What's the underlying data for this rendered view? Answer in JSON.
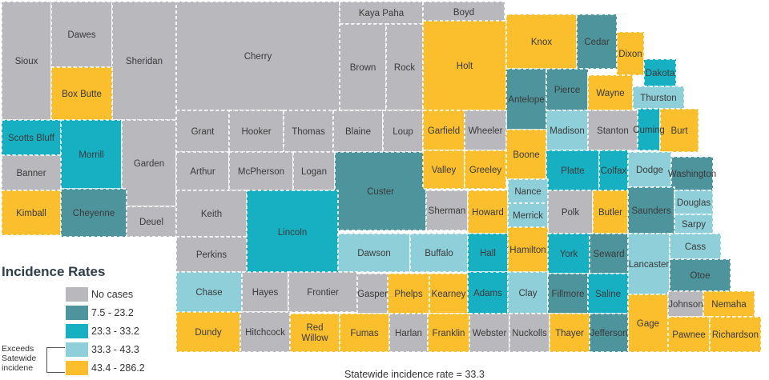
{
  "legend": {
    "title": "Incidence Rates",
    "items": [
      {
        "label": "No cases",
        "color": "#b9b9bd"
      },
      {
        "label": "7.5 - 23.2",
        "color": "#4e949c"
      },
      {
        "label": "23.3 - 33.2",
        "color": "#17b0c3"
      },
      {
        "label": "33.3 - 43.3",
        "color": "#8fcfd9"
      },
      {
        "label": "43.4 - 286.2",
        "color": "#fbbf2d"
      }
    ],
    "exceeds_note": "Exceeds Satewide incidene"
  },
  "footer": "Statewide incidence rate = 33.3",
  "counties": [
    {
      "name": "Sioux",
      "cls": 0
    },
    {
      "name": "Dawes",
      "cls": 0
    },
    {
      "name": "Sheridan",
      "cls": 0
    },
    {
      "name": "Cherry",
      "cls": 0
    },
    {
      "name": "Kaya Paha",
      "cls": 0
    },
    {
      "name": "Boyd",
      "cls": 0
    },
    {
      "name": "Box Butte",
      "cls": 4
    },
    {
      "name": "Brown",
      "cls": 0
    },
    {
      "name": "Rock",
      "cls": 0
    },
    {
      "name": "Holt",
      "cls": 4
    },
    {
      "name": "Knox",
      "cls": 4
    },
    {
      "name": "Cedar",
      "cls": 1
    },
    {
      "name": "Dixon",
      "cls": 4
    },
    {
      "name": "Dakota",
      "cls": 2
    },
    {
      "name": "Antelope",
      "cls": 1
    },
    {
      "name": "Pierce",
      "cls": 1
    },
    {
      "name": "Wayne",
      "cls": 4
    },
    {
      "name": "Thurston",
      "cls": 3
    },
    {
      "name": "Scotts Bluff",
      "cls": 2
    },
    {
      "name": "Morrill",
      "cls": 2
    },
    {
      "name": "Garden",
      "cls": 0
    },
    {
      "name": "Grant",
      "cls": 0
    },
    {
      "name": "Hooker",
      "cls": 0
    },
    {
      "name": "Thomas",
      "cls": 0
    },
    {
      "name": "Blaine",
      "cls": 0
    },
    {
      "name": "Loup",
      "cls": 0
    },
    {
      "name": "Garfield",
      "cls": 4
    },
    {
      "name": "Wheeler",
      "cls": 0
    },
    {
      "name": "Madison",
      "cls": 3
    },
    {
      "name": "Stanton",
      "cls": 0
    },
    {
      "name": "Cuming",
      "cls": 2
    },
    {
      "name": "Burt",
      "cls": 4
    },
    {
      "name": "Banner",
      "cls": 0
    },
    {
      "name": "Arthur",
      "cls": 0
    },
    {
      "name": "McPherson",
      "cls": 0
    },
    {
      "name": "Logan",
      "cls": 0
    },
    {
      "name": "Custer",
      "cls": 1
    },
    {
      "name": "Valley",
      "cls": 4
    },
    {
      "name": "Greeley",
      "cls": 4
    },
    {
      "name": "Boone",
      "cls": 4
    },
    {
      "name": "Platte",
      "cls": 2
    },
    {
      "name": "Colfax",
      "cls": 2
    },
    {
      "name": "Dodge",
      "cls": 3
    },
    {
      "name": "Washington",
      "cls": 1
    },
    {
      "name": "Kimball",
      "cls": 4
    },
    {
      "name": "Cheyenne",
      "cls": 1
    },
    {
      "name": "Deuel",
      "cls": 0
    },
    {
      "name": "Keith",
      "cls": 0
    },
    {
      "name": "Lincoln",
      "cls": 2
    },
    {
      "name": "Sherman",
      "cls": 0
    },
    {
      "name": "Howard",
      "cls": 4
    },
    {
      "name": "Nance",
      "cls": 3
    },
    {
      "name": "Merrick",
      "cls": 3
    },
    {
      "name": "Polk",
      "cls": 0
    },
    {
      "name": "Butler",
      "cls": 4
    },
    {
      "name": "Saunders",
      "cls": 1
    },
    {
      "name": "Douglas",
      "cls": 3
    },
    {
      "name": "Sarpy",
      "cls": 3
    },
    {
      "name": "Perkins",
      "cls": 0
    },
    {
      "name": "Dawson",
      "cls": 3
    },
    {
      "name": "Buffalo",
      "cls": 3
    },
    {
      "name": "Hall",
      "cls": 2
    },
    {
      "name": "Hamilton",
      "cls": 4
    },
    {
      "name": "York",
      "cls": 2
    },
    {
      "name": "Seward",
      "cls": 1
    },
    {
      "name": "Lancaster",
      "cls": 3
    },
    {
      "name": "Cass",
      "cls": 3
    },
    {
      "name": "Otoe",
      "cls": 1
    },
    {
      "name": "Chase",
      "cls": 3
    },
    {
      "name": "Hayes",
      "cls": 0
    },
    {
      "name": "Frontier",
      "cls": 0
    },
    {
      "name": "Gasper",
      "cls": 0
    },
    {
      "name": "Phelps",
      "cls": 4
    },
    {
      "name": "Kearney",
      "cls": 4
    },
    {
      "name": "Adams",
      "cls": 2
    },
    {
      "name": "Clay",
      "cls": 3
    },
    {
      "name": "Fillmore",
      "cls": 1
    },
    {
      "name": "Saline",
      "cls": 2
    },
    {
      "name": "Gage",
      "cls": 4
    },
    {
      "name": "Johnson",
      "cls": 0
    },
    {
      "name": "Nemaha",
      "cls": 4
    },
    {
      "name": "Dundy",
      "cls": 4
    },
    {
      "name": "Hitchcock",
      "cls": 0
    },
    {
      "name": "Red Willow",
      "cls": 4
    },
    {
      "name": "Fumas",
      "cls": 4
    },
    {
      "name": "Harlan",
      "cls": 0
    },
    {
      "name": "Franklin",
      "cls": 4
    },
    {
      "name": "Webster",
      "cls": 0
    },
    {
      "name": "Nuckolls",
      "cls": 0
    },
    {
      "name": "Thayer",
      "cls": 4
    },
    {
      "name": "Jefferson",
      "cls": 1
    },
    {
      "name": "Pawnee",
      "cls": 4
    },
    {
      "name": "Richardson",
      "cls": 4
    }
  ]
}
